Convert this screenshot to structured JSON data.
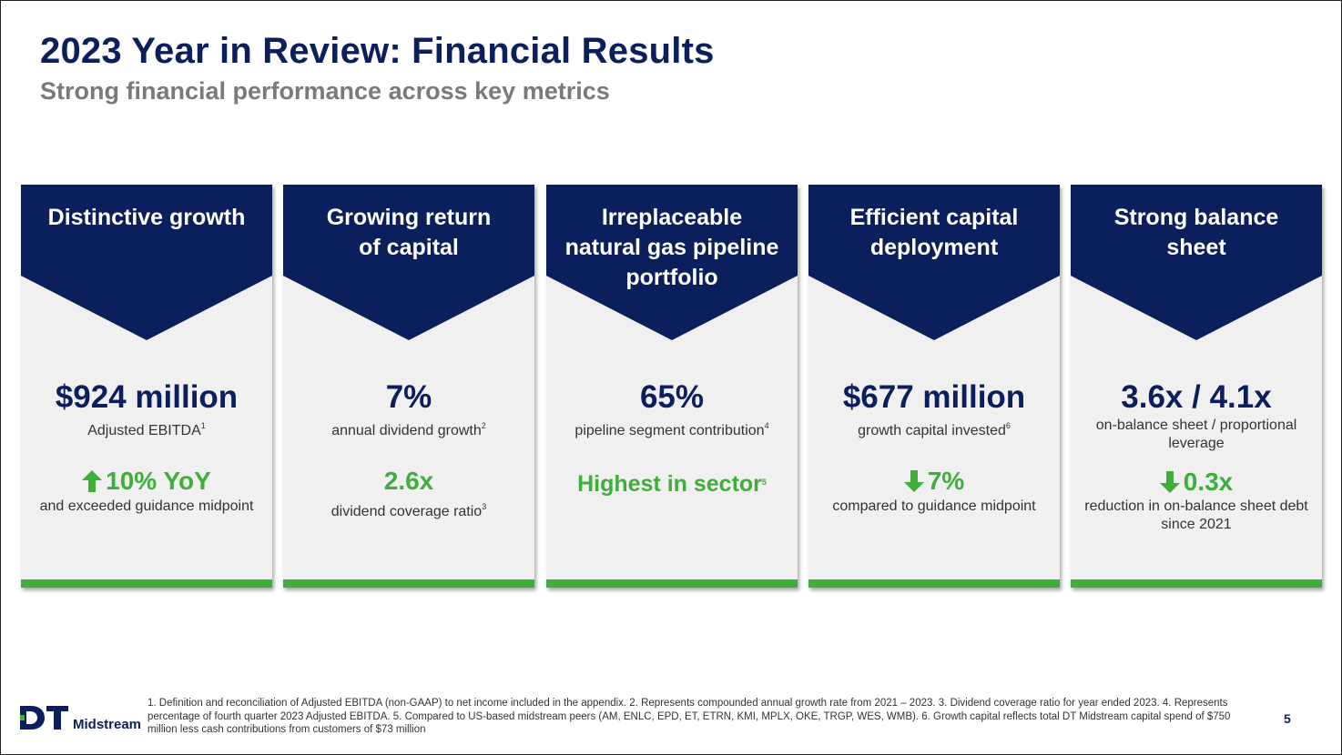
{
  "header": {
    "title": "2023 Year in Review: Financial Results",
    "subtitle": "Strong financial performance across key metrics"
  },
  "colors": {
    "navy": "#0a1f5c",
    "green": "#3fae3a",
    "card_bg": "#f0f0f0",
    "subtitle_gray": "#7a7a7a"
  },
  "cards": [
    {
      "heading_lines": [
        "Distinctive growth"
      ],
      "metric": "$924 million",
      "caption": "Adjusted EBITDA",
      "caption_sup": "1",
      "highlight_icon": "arrow-up-icon",
      "highlight": "10% YoY",
      "highlight_sup": "",
      "caption2": "and exceeded guidance midpoint"
    },
    {
      "heading_lines": [
        "Growing return",
        "of capital"
      ],
      "metric": "7%",
      "caption": "annual dividend growth",
      "caption_sup": "2",
      "highlight_icon": "",
      "highlight": "2.6x",
      "highlight_sup": "",
      "caption2": "dividend coverage ratio",
      "caption2_sup": "3"
    },
    {
      "heading_lines": [
        "Irreplaceable",
        "natural gas pipeline",
        "portfolio"
      ],
      "metric": "65%",
      "caption": "pipeline segment contribution",
      "caption_sup": "4",
      "highlight_icon": "",
      "highlight": "Highest in sector",
      "highlight_sup": "5",
      "caption2": ""
    },
    {
      "heading_lines": [
        "Efficient capital",
        "deployment"
      ],
      "metric": "$677 million",
      "caption": "growth capital invested",
      "caption_sup": "6",
      "highlight_icon": "arrow-down-icon",
      "highlight": "7%",
      "highlight_sup": "",
      "caption2": "compared to guidance midpoint"
    },
    {
      "heading_lines": [
        "Strong balance",
        "sheet"
      ],
      "metric": "3.6x / 4.1x",
      "caption": "on-balance sheet / proportional leverage",
      "caption_sup": "",
      "highlight_icon": "arrow-down-icon",
      "highlight": "0.3x",
      "highlight_sup": "",
      "caption2": "reduction in on-balance sheet debt since 2021"
    }
  ],
  "footer": {
    "footnotes": "1. Definition and reconciliation of Adjusted EBITDA (non-GAAP) to net income included in the appendix. 2. Represents compounded annual growth rate from 2021 – 2023. 3. Dividend coverage ratio for year ended 2023. 4. Represents percentage of fourth quarter 2023 Adjusted EBITDA. 5. Compared to US-based midstream peers (AM, ENLC, EPD, ET, ETRN, KMI, MPLX, OKE, TRGP, WES, WMB). 6. Growth capital reflects total DT Midstream capital spend of $750 million less cash contributions from customers of $73 million",
    "page_number": "5",
    "logo_mark": "DT",
    "logo_text": "Midstream"
  }
}
